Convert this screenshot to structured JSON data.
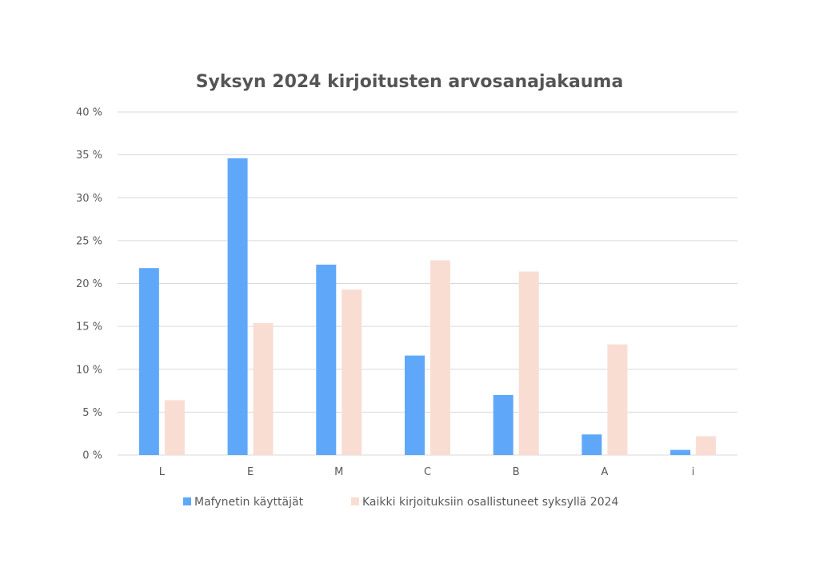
{
  "chart_data": {
    "type": "bar",
    "title": "Syksyn 2024 kirjoitusten arvosanajakauma",
    "xlabel": "",
    "ylabel": "",
    "categories": [
      "L",
      "E",
      "M",
      "C",
      "B",
      "A",
      "i"
    ],
    "ylim": [
      0,
      40
    ],
    "yticks": [
      0,
      5,
      10,
      15,
      20,
      25,
      30,
      35,
      40
    ],
    "ytick_labels": [
      "0 %",
      "5 %",
      "10 %",
      "15 %",
      "20 %",
      "25 %",
      "30 %",
      "35 %",
      "40 %"
    ],
    "grid": true,
    "legend_position": "bottom",
    "series": [
      {
        "name": "Mafynetin käyttäjät",
        "color": "#5fa8f9",
        "values": [
          21.8,
          34.6,
          22.2,
          11.6,
          7.0,
          2.4,
          0.6
        ]
      },
      {
        "name": "Kaikki kirjoituksiin osallistuneet syksyllä 2024",
        "color": "#f9ddd3",
        "values": [
          6.4,
          15.4,
          19.3,
          22.7,
          21.4,
          12.9,
          2.2
        ]
      }
    ]
  }
}
